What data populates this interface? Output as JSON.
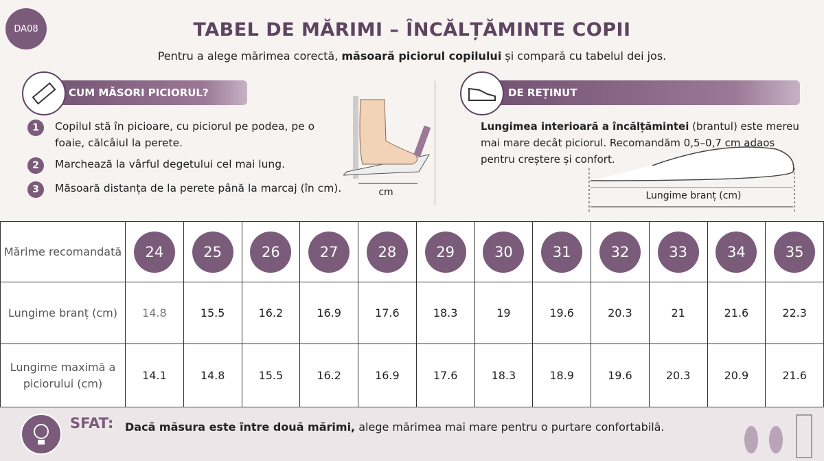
{
  "badge": "DA08",
  "header": {
    "title": "TABEL DE MĂRIMI – ÎNCĂLȚĂMINTE COPII",
    "subtitle": {
      "before": "Pentru a alege mărimea corectă, ",
      "bold": "măsoară piciorul copilului",
      "after": " și compară cu tabelul dei jos."
    }
  },
  "measure": {
    "heading": "CUM MĂSORI PICIORUL?",
    "steps": [
      {
        "number": "1",
        "text": "Copilul stă în picioare, cu piciorul pe podea, pe o foaie, călcâiul la perete."
      },
      {
        "number": "2",
        "text": "Marchează la vârful degetului cel mai lung."
      },
      {
        "number": "3",
        "text": "Măsoară distanța de la perete până la marcaj (în cm)."
      }
    ],
    "diagram_label": "cm"
  },
  "note": {
    "heading": "DE REȚINUT",
    "bold": "Lungimea interioară a încălțămintei",
    "text": " (brantul) este mereu mai mare decât piciorul. Recomandăm 0,5–0,7 cm adaos pentru creștere și confort.",
    "diagram_label": "Lungime branț (cm)"
  },
  "table": {
    "row_headers": [
      "Mărime recomandată",
      "Lungime branț (cm)",
      "Lungime maximă a piciorului (cm)"
    ],
    "sizes": [
      24,
      25,
      26,
      27,
      28,
      29,
      30,
      31,
      32,
      33,
      34,
      35
    ],
    "insole": [
      14.8,
      15.5,
      16.2,
      16.9,
      17.6,
      18.3,
      19,
      19.6,
      20.3,
      21,
      21.6,
      22.3
    ],
    "foot": [
      14.1,
      14.8,
      15.5,
      16.2,
      16.9,
      17.6,
      18.3,
      18.9,
      19.6,
      20.3,
      20.9,
      21.6
    ]
  },
  "tip": {
    "label": "SFAT:",
    "bold": "Dacă măsura este între două mărimi,",
    "text": " alege mărimea mai mare pentru o purtare confortabilă."
  }
}
